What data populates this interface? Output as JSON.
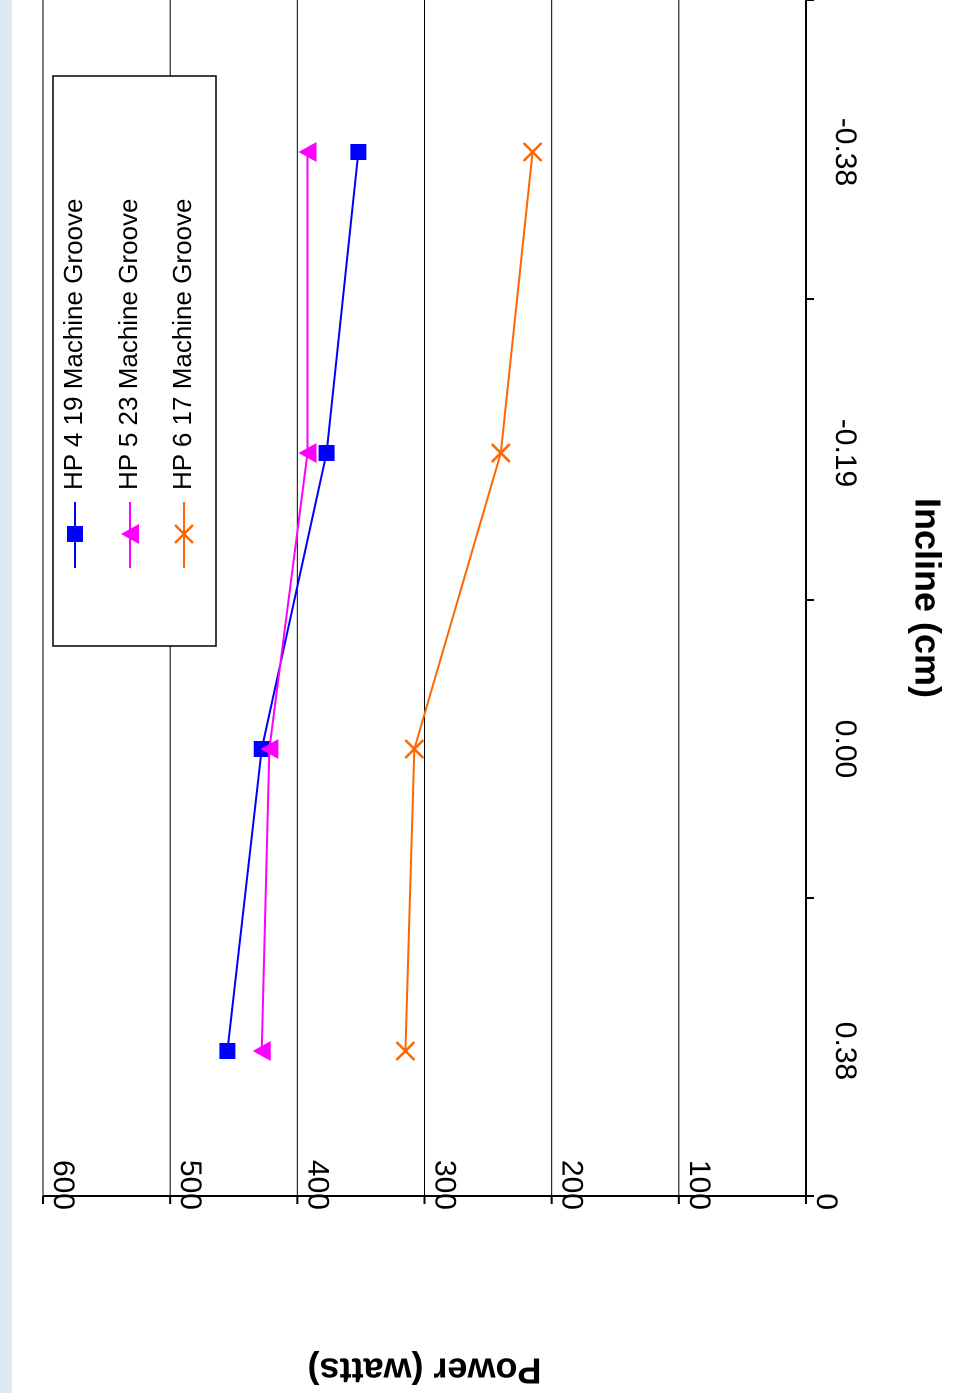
{
  "chart_data": {
    "type": "line",
    "orientation": "rotated-90-clockwise",
    "categories": [
      "0.38",
      "0.00",
      "-0.19",
      "-0.38"
    ],
    "xlabel": "Incline (cm)",
    "ylabel": "Power (watts)",
    "ylim": [
      0,
      600
    ],
    "yticks": [
      0,
      100,
      200,
      300,
      400,
      500,
      600
    ],
    "grid": true,
    "legend_placement": "top-right",
    "series": [
      {
        "name": "HP 4 19 Machine Groove",
        "values": [
          455,
          428,
          377,
          352
        ],
        "color": "#0000ff",
        "marker": "square"
      },
      {
        "name": "HP 5 23 Machine Groove",
        "values": [
          428,
          422,
          392,
          392
        ],
        "color": "#ff00ff",
        "marker": "triangle"
      },
      {
        "name": "HP 6 17 Machine Groove",
        "values": [
          315,
          308,
          240,
          215
        ],
        "color": "#ff6600",
        "marker": "x"
      }
    ]
  }
}
